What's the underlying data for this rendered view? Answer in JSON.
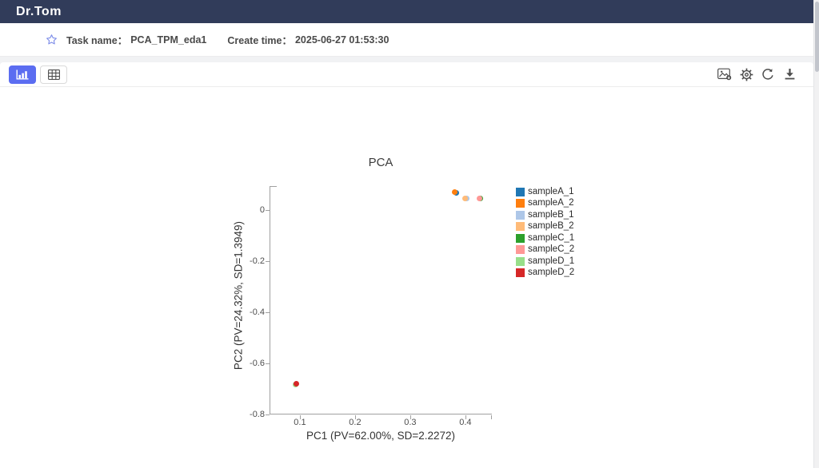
{
  "navbar": {
    "logo": "Dr.Tom"
  },
  "taskbar": {
    "task_name_label": "Task name：",
    "task_name_value": "PCA_TPM_eda1",
    "create_time_label": "Create time：",
    "create_time_value": "2025-06-27 01:53:30"
  },
  "toolbar": {
    "view_toggle": [
      {
        "name": "chart-view",
        "icon": "bar-chart-icon",
        "active": true
      },
      {
        "name": "table-view",
        "icon": "table-icon",
        "active": false
      }
    ],
    "actions": [
      {
        "name": "export-image",
        "icon": "image-icon"
      },
      {
        "name": "settings",
        "icon": "gear-icon"
      },
      {
        "name": "refresh",
        "icon": "refresh-icon"
      },
      {
        "name": "download",
        "icon": "download-icon"
      }
    ],
    "active_color": "#5b6df1",
    "icon_color": "#4d4d4d"
  },
  "chart_data": {
    "type": "scatter",
    "title": "PCA",
    "xlabel": "PC1 (PV=62.00%, SD=2.2272)",
    "ylabel": "PC2 (PV=24.32%, SD=1.3949)",
    "xlim": [
      0.045,
      0.448
    ],
    "ylim": [
      -0.8,
      0.094
    ],
    "xticks": [
      0.1,
      0.2,
      0.3,
      0.4
    ],
    "yticks": [
      0,
      -0.2,
      -0.4,
      -0.6,
      -0.8
    ],
    "grid": false,
    "legend_position": "right",
    "series": [
      {
        "name": "sampleA_1",
        "color": "#1f77b4",
        "points": [
          [
            0.383,
            0.066
          ]
        ]
      },
      {
        "name": "sampleA_2",
        "color": "#ff7f0e",
        "points": [
          [
            0.38,
            0.069
          ]
        ]
      },
      {
        "name": "sampleB_1",
        "color": "#aec7e8",
        "points": [
          [
            0.402,
            0.044
          ]
        ]
      },
      {
        "name": "sampleB_2",
        "color": "#ffbb78",
        "points": [
          [
            0.4,
            0.047
          ]
        ]
      },
      {
        "name": "sampleC_1",
        "color": "#2ca02c",
        "points": [
          [
            0.427,
            0.044
          ]
        ]
      },
      {
        "name": "sampleC_2",
        "color": "#ff9896",
        "points": [
          [
            0.425,
            0.047
          ]
        ]
      },
      {
        "name": "sampleD_1",
        "color": "#98df8a",
        "points": [
          [
            0.092,
            -0.683
          ]
        ]
      },
      {
        "name": "sampleD_2",
        "color": "#d62728",
        "points": [
          [
            0.094,
            -0.681
          ]
        ]
      }
    ]
  }
}
